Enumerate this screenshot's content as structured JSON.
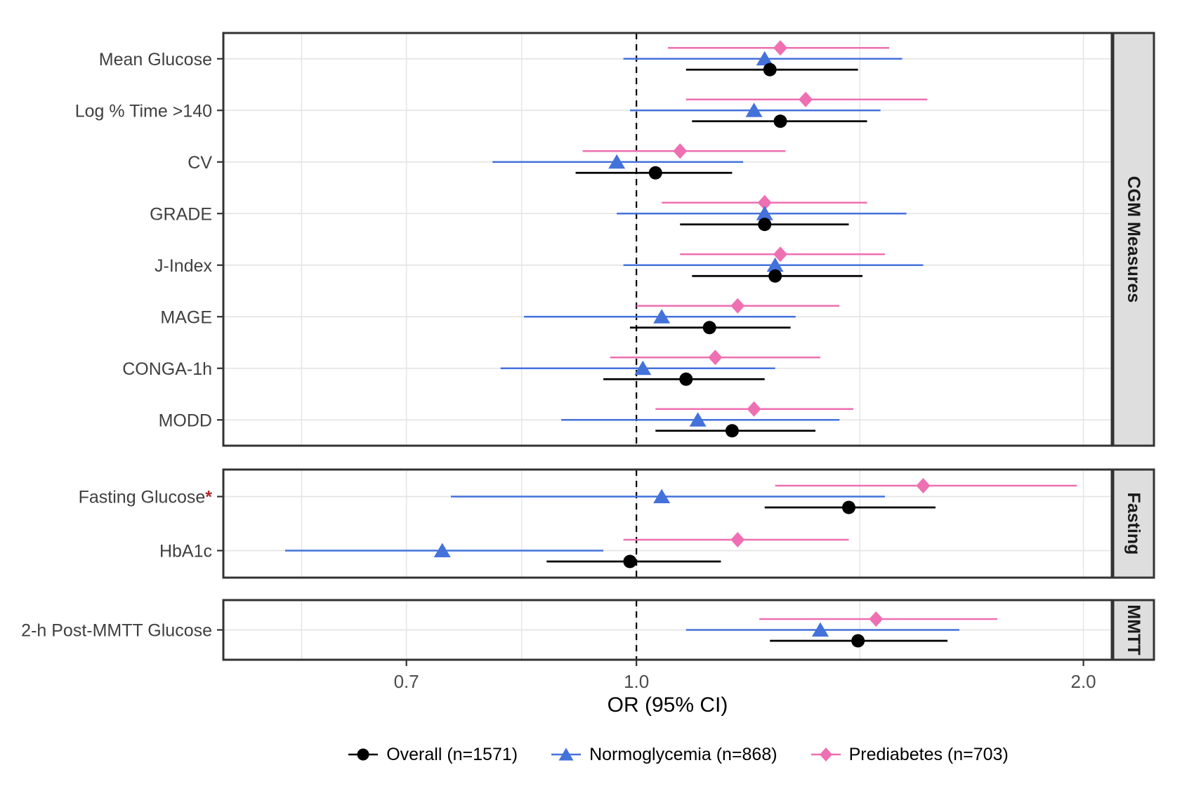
{
  "figure": {
    "axis_title": "OR (95% CI)",
    "x_tick_labels": [
      "0.7",
      "1.0",
      "2.0"
    ],
    "x_tick_values": [
      0.7,
      1.0,
      2.0
    ],
    "x_domain": [
      0.527,
      2.09
    ],
    "reference_line": 1.0,
    "colors": {
      "overall": "#000000",
      "normoglycemia": "#4472DB",
      "prediabetes": "#EE6FB2",
      "strip_fill": "#DEDEDE",
      "panel_border": "#333333",
      "gridline": "#E5E5E5",
      "axis_text": "#4D4D4D",
      "measure_label": "#404040",
      "asterisk": "#B02A2A"
    }
  },
  "legend": [
    {
      "label": "Overall (n=1571)",
      "marker": "circle",
      "series": "overall"
    },
    {
      "label": "Normoglycemia (n=868)",
      "marker": "triangle",
      "series": "normoglycemia"
    },
    {
      "label": "Prediabetes (n=703)",
      "marker": "diamond",
      "series": "prediabetes"
    }
  ],
  "chart_data": {
    "type": "forest",
    "x_axis": {
      "label": "OR (95% CI)",
      "scale": "log10",
      "ticks": [
        0.7,
        1.0,
        2.0
      ],
      "range": [
        0.527,
        2.09
      ]
    },
    "series_names": [
      "Overall (n=1571)",
      "Normoglycemia (n=868)",
      "Prediabetes (n=703)"
    ],
    "panels": [
      {
        "label": "CGM Measures",
        "rows": [
          {
            "measure": "Mean Glucose",
            "asterisk": "",
            "overall": {
              "or": 1.23,
              "lo": 1.08,
              "hi": 1.41
            },
            "normoglycemia": {
              "or": 1.22,
              "lo": 0.98,
              "hi": 1.51
            },
            "prediabetes": {
              "or": 1.25,
              "lo": 1.05,
              "hi": 1.48
            }
          },
          {
            "measure": "Log % Time >140",
            "asterisk": "",
            "overall": {
              "or": 1.25,
              "lo": 1.09,
              "hi": 1.43
            },
            "normoglycemia": {
              "or": 1.2,
              "lo": 0.99,
              "hi": 1.46
            },
            "prediabetes": {
              "or": 1.3,
              "lo": 1.08,
              "hi": 1.57
            }
          },
          {
            "measure": "CV",
            "asterisk": "",
            "overall": {
              "or": 1.03,
              "lo": 0.91,
              "hi": 1.16
            },
            "normoglycemia": {
              "or": 0.97,
              "lo": 0.8,
              "hi": 1.18
            },
            "prediabetes": {
              "or": 1.07,
              "lo": 0.92,
              "hi": 1.26
            }
          },
          {
            "measure": "GRADE",
            "asterisk": "",
            "overall": {
              "or": 1.22,
              "lo": 1.07,
              "hi": 1.39
            },
            "normoglycemia": {
              "or": 1.22,
              "lo": 0.97,
              "hi": 1.52
            },
            "prediabetes": {
              "or": 1.22,
              "lo": 1.04,
              "hi": 1.43
            }
          },
          {
            "measure": "J-Index",
            "asterisk": "",
            "overall": {
              "or": 1.24,
              "lo": 1.09,
              "hi": 1.42
            },
            "normoglycemia": {
              "or": 1.24,
              "lo": 0.98,
              "hi": 1.56
            },
            "prediabetes": {
              "or": 1.25,
              "lo": 1.07,
              "hi": 1.47
            }
          },
          {
            "measure": "MAGE",
            "asterisk": "",
            "overall": {
              "or": 1.12,
              "lo": 0.99,
              "hi": 1.27
            },
            "normoglycemia": {
              "or": 1.04,
              "lo": 0.84,
              "hi": 1.28
            },
            "prediabetes": {
              "or": 1.17,
              "lo": 1.0,
              "hi": 1.37
            }
          },
          {
            "measure": "CONGA-1h",
            "asterisk": "",
            "overall": {
              "or": 1.08,
              "lo": 0.95,
              "hi": 1.22
            },
            "normoglycemia": {
              "or": 1.01,
              "lo": 0.81,
              "hi": 1.24
            },
            "prediabetes": {
              "or": 1.13,
              "lo": 0.96,
              "hi": 1.33
            }
          },
          {
            "measure": "MODD",
            "asterisk": "",
            "overall": {
              "or": 1.16,
              "lo": 1.03,
              "hi": 1.32
            },
            "normoglycemia": {
              "or": 1.1,
              "lo": 0.89,
              "hi": 1.37
            },
            "prediabetes": {
              "or": 1.2,
              "lo": 1.03,
              "hi": 1.4
            }
          }
        ]
      },
      {
        "label": "Fasting",
        "rows": [
          {
            "measure": "Fasting Glucose",
            "asterisk": "*",
            "overall": {
              "or": 1.39,
              "lo": 1.22,
              "hi": 1.59
            },
            "normoglycemia": {
              "or": 1.04,
              "lo": 0.75,
              "hi": 1.47
            },
            "prediabetes": {
              "or": 1.56,
              "lo": 1.24,
              "hi": 1.98
            }
          },
          {
            "measure": "HbA1c",
            "asterisk": "",
            "overall": {
              "or": 0.99,
              "lo": 0.87,
              "hi": 1.14
            },
            "normoglycemia": {
              "or": 0.74,
              "lo": 0.58,
              "hi": 0.95
            },
            "prediabetes": {
              "or": 1.17,
              "lo": 0.98,
              "hi": 1.39
            }
          }
        ]
      },
      {
        "label": "MMTT",
        "rows": [
          {
            "measure": "2-h Post-MMTT Glucose",
            "asterisk": "",
            "overall": {
              "or": 1.41,
              "lo": 1.23,
              "hi": 1.62
            },
            "normoglycemia": {
              "or": 1.33,
              "lo": 1.08,
              "hi": 1.65
            },
            "prediabetes": {
              "or": 1.45,
              "lo": 1.21,
              "hi": 1.75
            }
          }
        ]
      }
    ]
  }
}
